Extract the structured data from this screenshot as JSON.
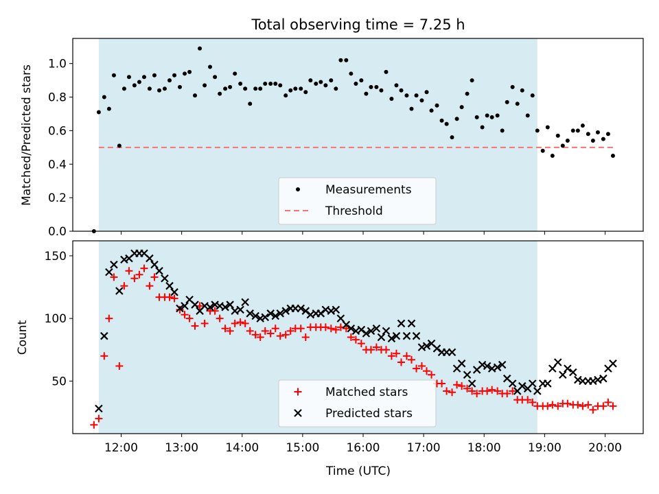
{
  "figure_title": "Total observing time = 7.25 h",
  "colors": {
    "shade": "#add8e6",
    "measurement": "#000000",
    "threshold": "#ff7070",
    "matched": "#ff0000",
    "predicted": "#000000"
  },
  "chart_data": [
    {
      "type": "scatter",
      "title": "Total observing time = 7.25 h",
      "xlabel": "",
      "ylabel": "Matched/Predicted stars",
      "xlim": [
        11.2,
        20.63
      ],
      "ylim": [
        0,
        1.15
      ],
      "yticks": [
        0.0,
        0.2,
        0.4,
        0.6,
        0.8,
        1.0
      ],
      "ytick_labels": [
        "0.0",
        "0.2",
        "0.4",
        "0.6",
        "0.8",
        "1.0"
      ],
      "shaded_x_range": [
        11.63,
        18.88
      ],
      "grid": false,
      "legend": {
        "position": "bottom-center",
        "entries": [
          "Measurements",
          "Threshold"
        ]
      },
      "threshold": {
        "name": "Threshold",
        "y": 0.5,
        "x": [
          11.63,
          20.13
        ]
      },
      "series": [
        {
          "name": "Measurements",
          "marker": "dot",
          "x": [
            11.55,
            11.63,
            11.72,
            11.8,
            11.88,
            11.97,
            12.05,
            12.13,
            12.22,
            12.3,
            12.38,
            12.47,
            12.55,
            12.63,
            12.72,
            12.8,
            12.88,
            12.97,
            13.05,
            13.13,
            13.22,
            13.3,
            13.38,
            13.47,
            13.55,
            13.63,
            13.72,
            13.8,
            13.88,
            13.97,
            14.05,
            14.13,
            14.22,
            14.3,
            14.38,
            14.47,
            14.55,
            14.63,
            14.72,
            14.8,
            14.88,
            14.97,
            15.05,
            15.13,
            15.22,
            15.3,
            15.38,
            15.47,
            15.55,
            15.63,
            15.72,
            15.8,
            15.88,
            15.97,
            16.05,
            16.13,
            16.22,
            16.3,
            16.38,
            16.47,
            16.55,
            16.63,
            16.72,
            16.8,
            16.88,
            16.97,
            17.05,
            17.13,
            17.22,
            17.3,
            17.38,
            17.47,
            17.55,
            17.63,
            17.72,
            17.8,
            17.88,
            17.97,
            18.05,
            18.13,
            18.22,
            18.3,
            18.38,
            18.47,
            18.55,
            18.63,
            18.72,
            18.8,
            18.88,
            18.97,
            19.05,
            19.13,
            19.22,
            19.3,
            19.38,
            19.47,
            19.55,
            19.63,
            19.72,
            19.8,
            19.88,
            19.97,
            20.05,
            20.13
          ],
          "y": [
            0.0,
            0.71,
            0.8,
            0.73,
            0.93,
            0.51,
            0.85,
            0.92,
            0.87,
            0.89,
            0.92,
            0.85,
            0.93,
            0.84,
            0.85,
            0.9,
            0.93,
            0.86,
            0.94,
            0.95,
            0.81,
            1.09,
            0.87,
            0.98,
            0.92,
            0.82,
            0.85,
            0.86,
            0.94,
            0.88,
            0.85,
            0.76,
            0.85,
            0.85,
            0.88,
            0.88,
            0.88,
            0.87,
            0.81,
            0.84,
            0.85,
            0.85,
            0.83,
            0.9,
            0.88,
            0.89,
            0.87,
            0.9,
            0.85,
            1.02,
            1.02,
            0.94,
            0.88,
            0.9,
            0.82,
            0.86,
            0.86,
            0.84,
            0.95,
            0.79,
            0.87,
            0.84,
            0.81,
            0.73,
            0.81,
            0.78,
            0.83,
            0.72,
            0.75,
            0.66,
            0.64,
            0.56,
            0.67,
            0.74,
            0.82,
            0.9,
            0.68,
            0.62,
            0.69,
            0.68,
            0.69,
            0.6,
            0.77,
            0.86,
            0.76,
            0.84,
            0.69,
            0.81,
            0.6,
            0.48,
            0.62,
            0.45,
            0.57,
            0.51,
            0.54,
            0.6,
            0.6,
            0.63,
            0.58,
            0.54,
            0.59,
            0.55,
            0.58,
            0.45
          ]
        }
      ]
    },
    {
      "type": "scatter",
      "xlabel": "Time (UTC)",
      "ylabel": "Count",
      "xlim": [
        11.2,
        20.63
      ],
      "ylim": [
        8,
        162
      ],
      "xticks": [
        12,
        13,
        14,
        15,
        16,
        17,
        18,
        19,
        20
      ],
      "xtick_labels": [
        "12:00",
        "13:00",
        "14:00",
        "15:00",
        "16:00",
        "17:00",
        "18:00",
        "19:00",
        "20:00"
      ],
      "yticks": [
        50,
        100,
        150
      ],
      "ytick_labels": [
        "50",
        "100",
        "150"
      ],
      "shaded_x_range": [
        11.63,
        18.88
      ],
      "grid": false,
      "legend": {
        "position": "bottom-center",
        "entries": [
          "Matched stars",
          "Predicted stars"
        ]
      },
      "series": [
        {
          "name": "Matched stars",
          "marker": "plus",
          "x": [
            11.55,
            11.63,
            11.72,
            11.8,
            11.88,
            11.97,
            12.05,
            12.13,
            12.22,
            12.3,
            12.38,
            12.47,
            12.55,
            12.63,
            12.72,
            12.8,
            12.88,
            12.97,
            13.05,
            13.13,
            13.22,
            13.3,
            13.38,
            13.47,
            13.55,
            13.63,
            13.72,
            13.8,
            13.88,
            13.97,
            14.05,
            14.13,
            14.22,
            14.3,
            14.38,
            14.47,
            14.55,
            14.63,
            14.72,
            14.8,
            14.88,
            14.97,
            15.05,
            15.13,
            15.22,
            15.3,
            15.38,
            15.47,
            15.55,
            15.63,
            15.72,
            15.8,
            15.88,
            15.97,
            16.05,
            16.13,
            16.22,
            16.3,
            16.38,
            16.47,
            16.55,
            16.63,
            16.72,
            16.8,
            16.88,
            16.97,
            17.05,
            17.13,
            17.22,
            17.3,
            17.38,
            17.47,
            17.55,
            17.63,
            17.72,
            17.8,
            17.88,
            17.97,
            18.05,
            18.13,
            18.22,
            18.3,
            18.38,
            18.47,
            18.55,
            18.63,
            18.72,
            18.8,
            18.88,
            18.97,
            19.05,
            19.13,
            19.22,
            19.3,
            19.38,
            19.47,
            19.55,
            19.63,
            19.72,
            19.8,
            19.88,
            19.97,
            20.05,
            20.13
          ],
          "y": [
            15,
            20,
            70,
            100,
            133,
            62,
            126,
            138,
            132,
            135,
            140,
            126,
            133,
            117,
            117,
            117,
            116,
            107,
            103,
            100,
            94,
            110,
            96,
            106,
            106,
            100,
            92,
            90,
            96,
            97,
            96,
            90,
            87,
            85,
            90,
            88,
            92,
            86,
            87,
            90,
            92,
            92,
            85,
            93,
            93,
            93,
            93,
            92,
            91,
            93,
            92,
            85,
            83,
            80,
            75,
            75,
            77,
            75,
            75,
            70,
            72,
            65,
            70,
            67,
            60,
            62,
            58,
            55,
            48,
            48,
            42,
            41,
            47,
            46,
            44,
            42,
            40,
            42,
            42,
            43,
            42,
            40,
            40,
            42,
            35,
            35,
            35,
            33,
            30,
            30,
            30,
            31,
            30,
            32,
            32,
            31,
            31,
            30,
            31,
            27,
            30,
            30,
            33,
            30
          ]
        },
        {
          "name": "Predicted stars",
          "marker": "x",
          "x": [
            11.55,
            11.63,
            11.72,
            11.8,
            11.88,
            11.97,
            12.05,
            12.13,
            12.22,
            12.3,
            12.38,
            12.47,
            12.55,
            12.63,
            12.72,
            12.8,
            12.88,
            12.97,
            13.05,
            13.13,
            13.22,
            13.3,
            13.38,
            13.47,
            13.55,
            13.63,
            13.72,
            13.8,
            13.88,
            13.97,
            14.05,
            14.13,
            14.22,
            14.3,
            14.38,
            14.47,
            14.55,
            14.63,
            14.72,
            14.8,
            14.88,
            14.97,
            15.05,
            15.13,
            15.22,
            15.3,
            15.38,
            15.47,
            15.55,
            15.63,
            15.72,
            15.8,
            15.88,
            15.97,
            16.05,
            16.13,
            16.22,
            16.3,
            16.38,
            16.47,
            16.55,
            16.63,
            16.72,
            16.8,
            16.88,
            16.97,
            17.05,
            17.13,
            17.22,
            17.3,
            17.38,
            17.47,
            17.55,
            17.63,
            17.72,
            17.8,
            17.88,
            17.97,
            18.05,
            18.13,
            18.22,
            18.3,
            18.38,
            18.47,
            18.55,
            18.63,
            18.72,
            18.8,
            18.88,
            18.97,
            19.05,
            19.13,
            19.22,
            19.3,
            19.38,
            19.47,
            19.55,
            19.63,
            19.72,
            19.8,
            19.88,
            19.97,
            20.05,
            20.13
          ],
          "y": [
            null,
            28,
            86,
            137,
            143,
            122,
            147,
            148,
            152,
            152,
            152,
            148,
            143,
            138,
            132,
            126,
            121,
            108,
            110,
            115,
            111,
            106,
            110,
            109,
            111,
            110,
            109,
            111,
            106,
            107,
            113,
            104,
            102,
            100,
            101,
            104,
            102,
            104,
            106,
            108,
            108,
            108,
            106,
            103,
            104,
            104,
            107,
            106,
            107,
            100,
            95,
            92,
            90,
            91,
            88,
            90,
            92,
            85,
            90,
            84,
            86,
            96,
            86,
            96,
            86,
            77,
            78,
            80,
            76,
            73,
            73,
            73,
            60,
            64,
            55,
            48,
            59,
            63,
            62,
            60,
            61,
            63,
            52,
            48,
            42,
            46,
            44,
            48,
            42,
            48,
            48,
            60,
            65,
            55,
            60,
            57,
            51,
            50,
            50,
            50,
            51,
            52,
            60,
            64
          ]
        }
      ]
    }
  ]
}
